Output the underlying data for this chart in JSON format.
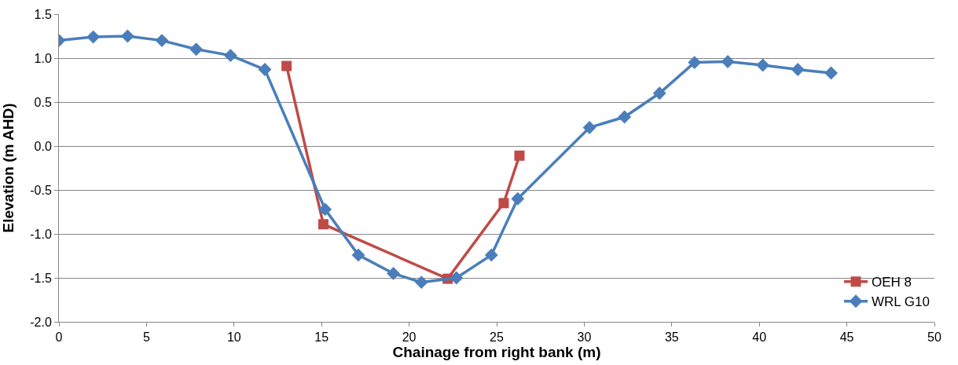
{
  "chart_data": {
    "type": "line",
    "xlabel": "Chainage from right bank (m)",
    "ylabel": "Elevation (m AHD)",
    "xlim": [
      0,
      50
    ],
    "xticks": [
      0,
      5,
      10,
      15,
      20,
      25,
      30,
      35,
      40,
      45,
      50
    ],
    "ylim": [
      -2.0,
      1.5
    ],
    "yticks": [
      {
        "value": -2.0,
        "label": "-2.0"
      },
      {
        "value": -1.5,
        "label": "-1.5"
      },
      {
        "value": -1.0,
        "label": "-1.0"
      },
      {
        "value": -0.5,
        "label": "-0.5"
      },
      {
        "value": 0,
        "label": "0.0"
      },
      {
        "value": 0.5,
        "label": "0.5"
      },
      {
        "value": 1.0,
        "label": "1.0"
      },
      {
        "value": 1.5,
        "label": "1.5"
      }
    ],
    "grid": "y",
    "legend": "bottom right",
    "series": [
      {
        "name": "WRL G10",
        "color": "#4a7ebb",
        "marker": "diamond",
        "x": [
          0,
          1.96,
          3.92,
          5.88,
          7.84,
          9.8,
          11.76,
          15.2,
          17.1,
          19.1,
          20.7,
          22.7,
          24.7,
          26.2,
          30.3,
          32.3,
          34.3,
          36.3,
          38.2,
          40.2,
          42.2,
          44.1
        ],
        "values": [
          1.2,
          1.24,
          1.25,
          1.2,
          1.1,
          1.03,
          0.87,
          -0.72,
          -1.24,
          -1.45,
          -1.55,
          -1.5,
          -1.24,
          -0.6,
          0.21,
          0.33,
          0.6,
          0.95,
          0.96,
          0.92,
          0.87,
          0.83
        ]
      },
      {
        "name": "OEH 8",
        "color": "#be4b48",
        "marker": "square",
        "x": [
          13.0,
          15.1,
          22.2,
          25.4,
          26.3
        ],
        "values": [
          0.91,
          -0.89,
          -1.51,
          -0.65,
          -0.11
        ]
      }
    ]
  }
}
